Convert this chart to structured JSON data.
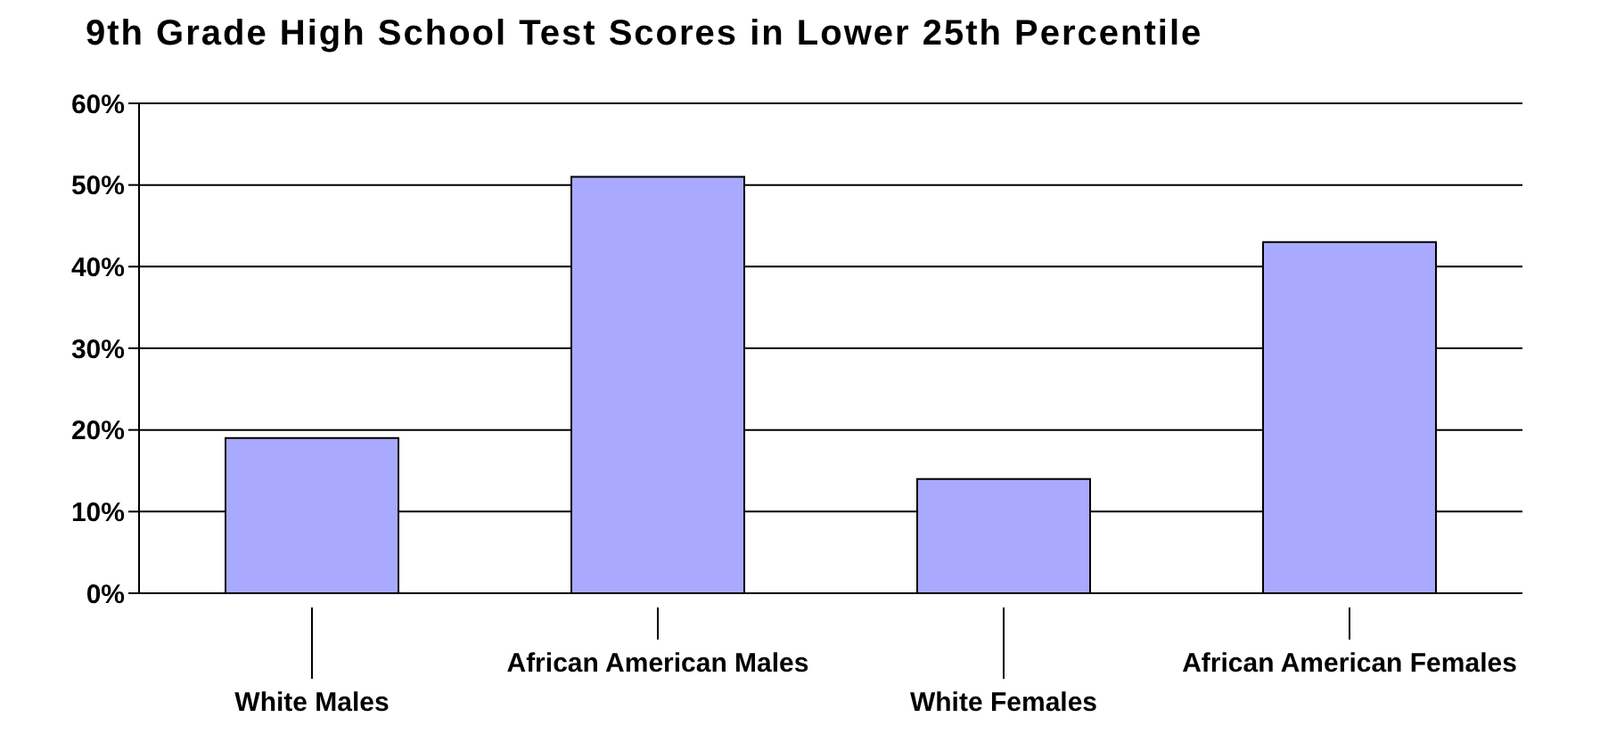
{
  "chart_data": {
    "type": "bar",
    "title": "9th Grade High School Test Scores in Lower 25th Percentile",
    "categories": [
      "White Males",
      "African American Males",
      "White Females",
      "African American Females"
    ],
    "values": [
      19,
      51,
      14,
      43
    ],
    "color": "#a9a9ff",
    "ylim": [
      0,
      60
    ],
    "yticks": [
      {
        "value": 0,
        "label": "0%"
      },
      {
        "value": 10,
        "label": "10%"
      },
      {
        "value": 20,
        "label": "20%"
      },
      {
        "value": 30,
        "label": "30%"
      },
      {
        "value": 40,
        "label": "40%"
      },
      {
        "value": 50,
        "label": "50%"
      },
      {
        "value": 60,
        "label": "60%"
      }
    ],
    "grid": "y"
  }
}
